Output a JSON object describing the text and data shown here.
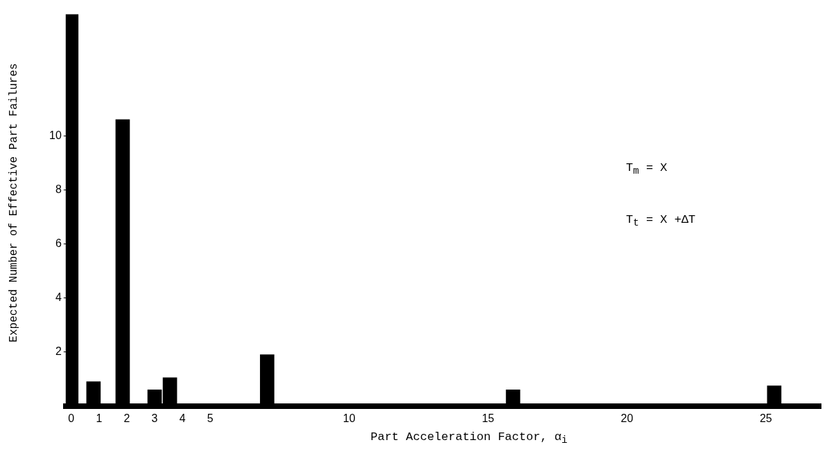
{
  "chart_data": {
    "type": "bar",
    "xlabel": "Part Acceleration Factor, α$_{i}$",
    "ylabel": "Expected Number of Effective Part Failures",
    "x": [
      0,
      0.8,
      1.85,
      3.0,
      3.55,
      7.05,
      15.9,
      25.3
    ],
    "values": [
      14.5,
      0.9,
      10.6,
      0.6,
      1.05,
      1.9,
      0.6,
      0.75
    ],
    "color": "#000000",
    "xlim": [
      -0.2,
      27
    ],
    "xticks": [
      0,
      1,
      2,
      3,
      4,
      5,
      10,
      15,
      20,
      25
    ],
    "ylim": [
      0,
      14.5
    ],
    "yticks": [
      2,
      4,
      6,
      8,
      10
    ],
    "grid": false,
    "legend": false,
    "annotations": [
      "T$_{m}$ = X",
      "T$_{t}$ = X +ΔT"
    ]
  }
}
